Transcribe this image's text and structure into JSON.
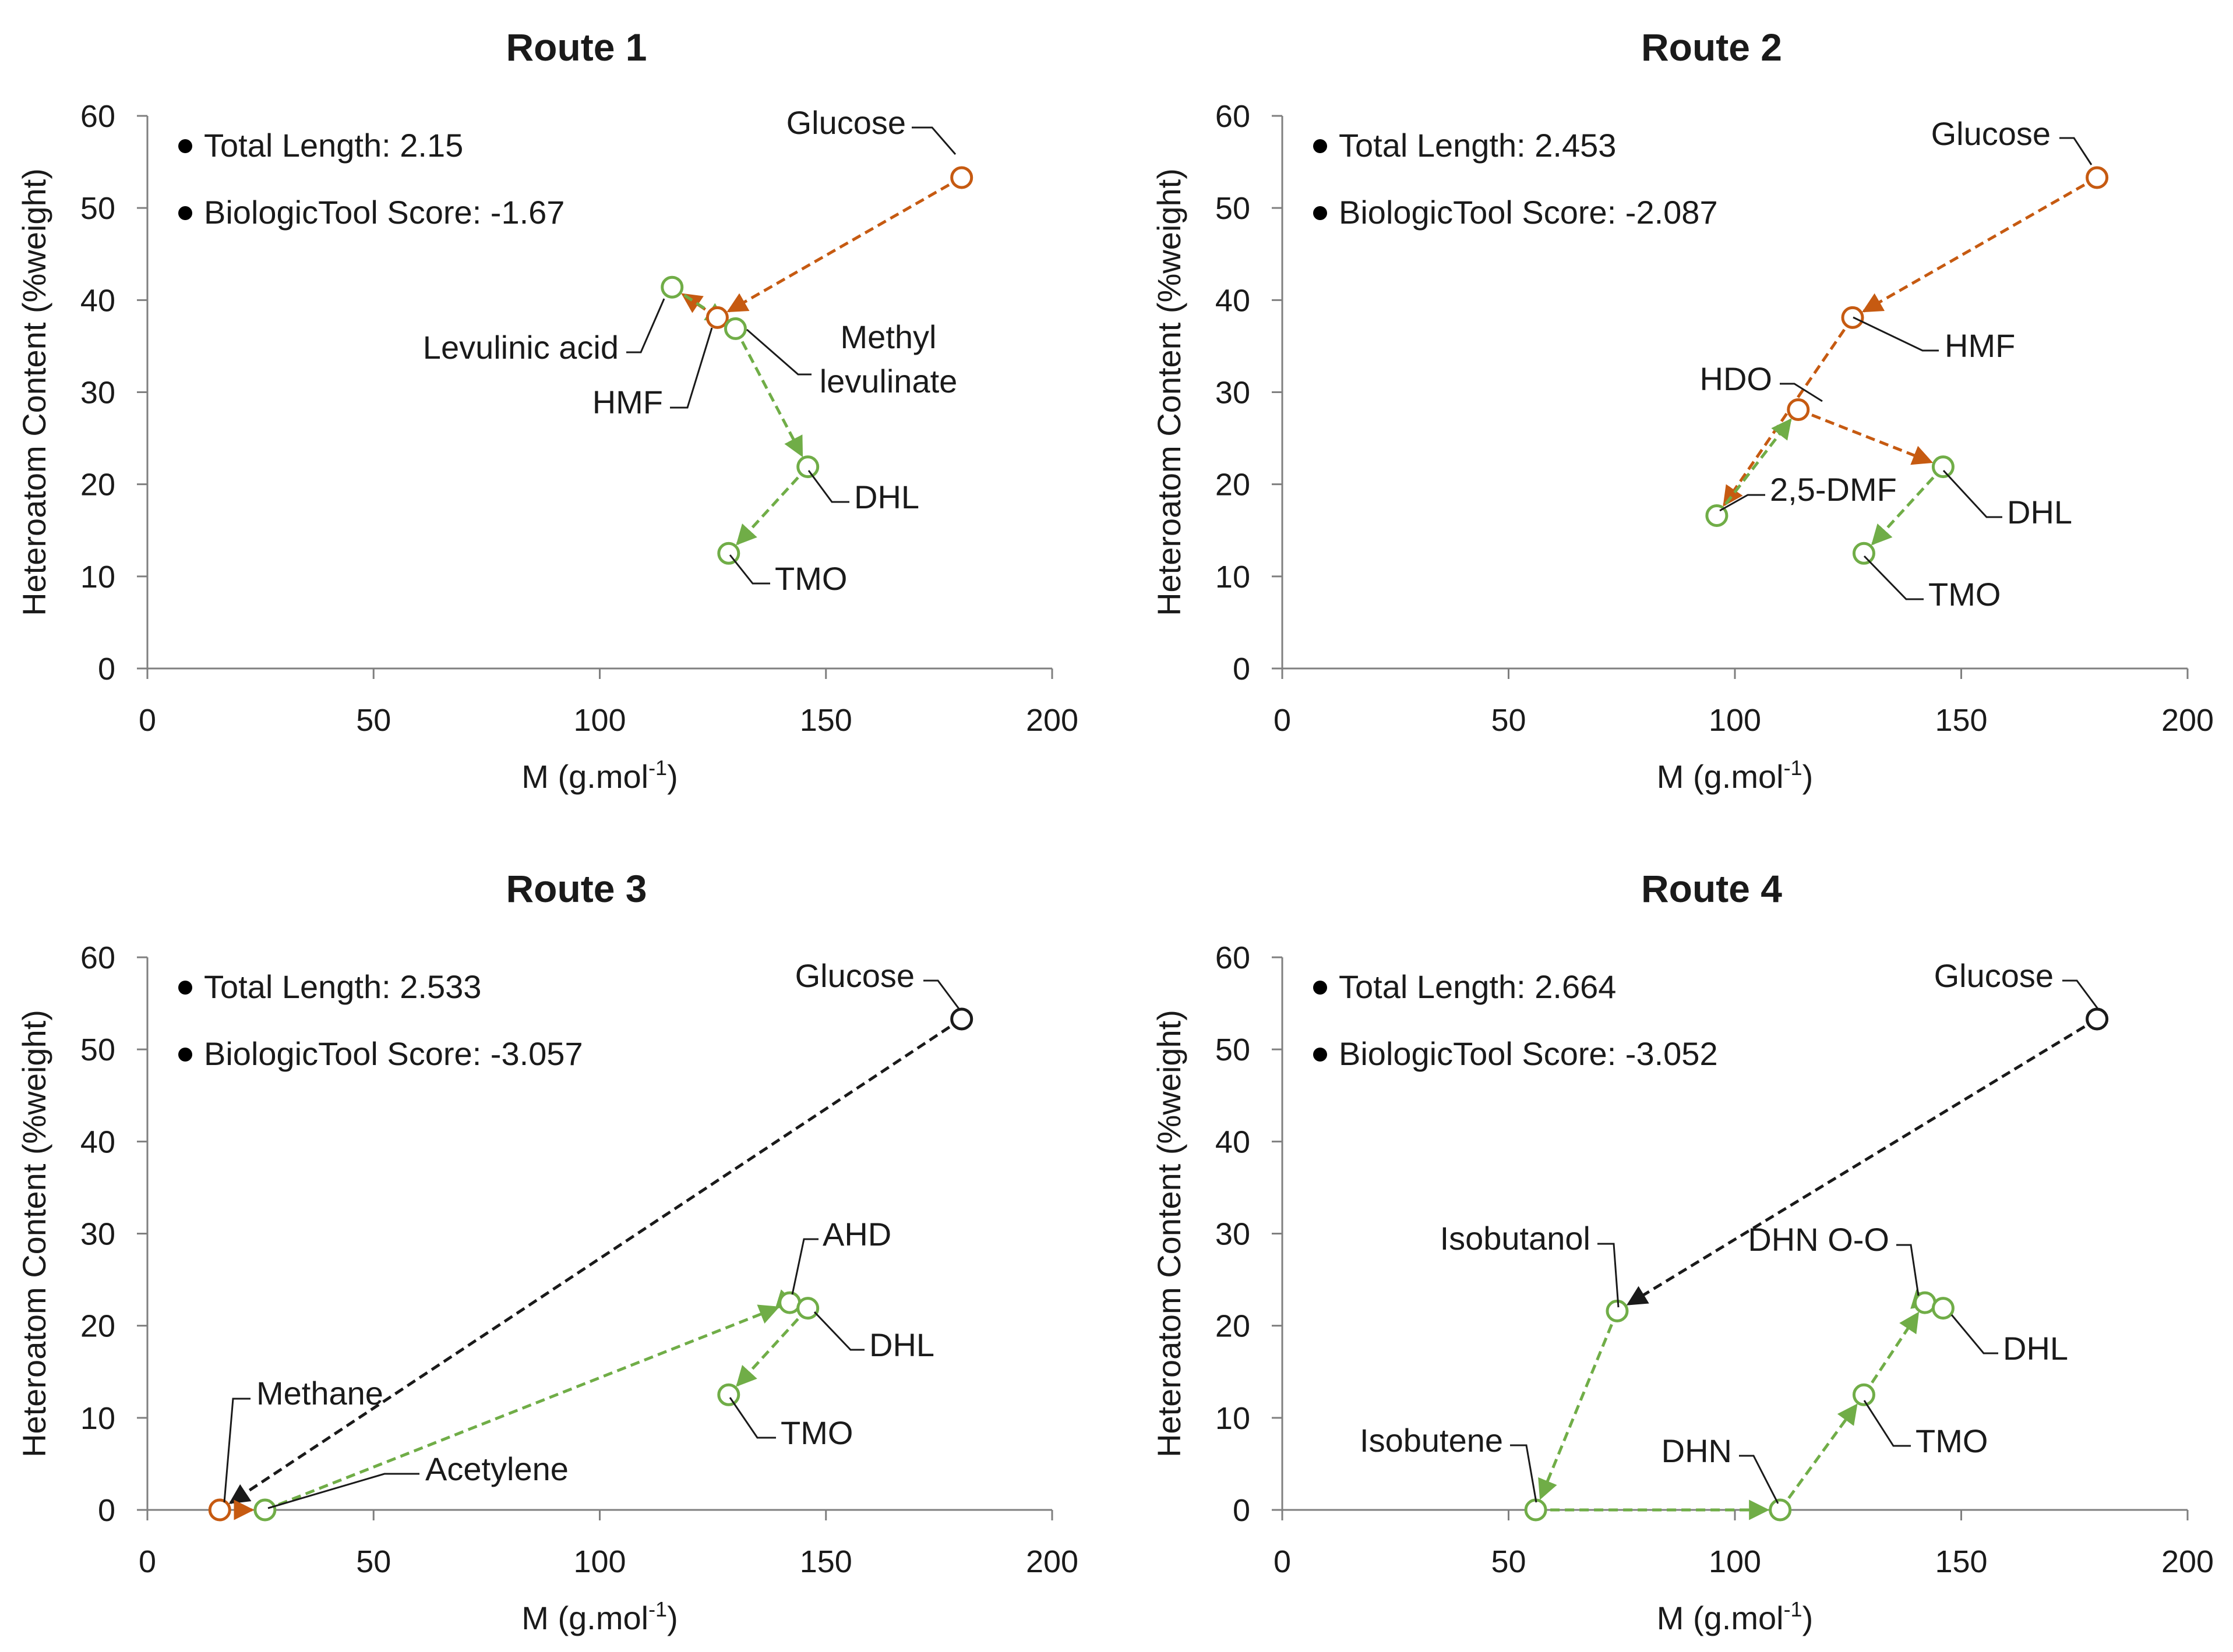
{
  "chart_data": [
    {
      "type": "scatter",
      "title": "Route 1",
      "xlabel": "M (g.mol",
      "xlabel_sup": "-1",
      "xlabel_end": ")",
      "ylabel": "Heteroatom Content (%weight)",
      "xlim": [
        0,
        200
      ],
      "ylim": [
        0,
        60
      ],
      "xticks": [
        0,
        50,
        100,
        150,
        200
      ],
      "yticks": [
        0,
        10,
        20,
        30,
        40,
        50,
        60
      ],
      "notes": [
        "Total Length: 2.15",
        "BiologicTool Score: -1.67"
      ],
      "points": [
        {
          "label": "Glucose",
          "x": 180,
          "y": 53.3,
          "color": "#c65a11"
        },
        {
          "label": "HMF",
          "x": 126,
          "y": 38.1,
          "color": "#c65a11"
        },
        {
          "label": "Levulinic acid",
          "x": 116,
          "y": 41.4,
          "color": "#70ad47"
        },
        {
          "label": "Methyl levulinate",
          "x": 130,
          "y": 36.9,
          "color": "#70ad47"
        },
        {
          "label": "DHL",
          "x": 146,
          "y": 21.9,
          "color": "#70ad47"
        },
        {
          "label": "TMO",
          "x": 128.5,
          "y": 12.5,
          "color": "#70ad47"
        }
      ],
      "series": [
        {
          "name": "chemical",
          "color": "#c65a11",
          "path": [
            "Glucose",
            "HMF",
            "Levulinic acid"
          ]
        },
        {
          "name": "biological",
          "color": "#70ad47",
          "path": [
            "Levulinic acid",
            "Methyl levulinate",
            "DHL",
            "TMO"
          ]
        }
      ]
    },
    {
      "type": "scatter",
      "title": "Route 2",
      "xlabel": "M (g.mol",
      "xlabel_sup": "-1",
      "xlabel_end": ")",
      "ylabel": "Heteroatom Content (%weight)",
      "xlim": [
        0,
        200
      ],
      "ylim": [
        0,
        60
      ],
      "xticks": [
        0,
        50,
        100,
        150,
        200
      ],
      "yticks": [
        0,
        10,
        20,
        30,
        40,
        50,
        60
      ],
      "notes": [
        "Total Length: 2.453",
        "BiologicTool Score: -2.087"
      ],
      "points": [
        {
          "label": "Glucose",
          "x": 180,
          "y": 53.3,
          "color": "#c65a11"
        },
        {
          "label": "HMF",
          "x": 126,
          "y": 38.1,
          "color": "#c65a11"
        },
        {
          "label": "HDO",
          "x": 114,
          "y": 28.1,
          "color": "#c65a11"
        },
        {
          "label": "2,5-DMF",
          "x": 96,
          "y": 16.6,
          "color": "#70ad47"
        },
        {
          "label": "DHL",
          "x": 146,
          "y": 21.9,
          "color": "#70ad47"
        },
        {
          "label": "TMO",
          "x": 128.5,
          "y": 12.5,
          "color": "#70ad47"
        }
      ],
      "series": [
        {
          "name": "chemical",
          "color": "#c65a11",
          "path": [
            "Glucose",
            "HMF",
            "2,5-DMF"
          ]
        },
        {
          "name": "chemical-2",
          "color": "#c65a11",
          "path": [
            "HDO",
            "DHL"
          ]
        },
        {
          "name": "biological",
          "color": "#70ad47",
          "path": [
            "2,5-DMF",
            "HDO"
          ]
        },
        {
          "name": "biological-2",
          "color": "#70ad47",
          "path": [
            "DHL",
            "TMO"
          ]
        }
      ]
    },
    {
      "type": "scatter",
      "title": "Route 3",
      "xlabel": "M (g.mol",
      "xlabel_sup": "-1",
      "xlabel_end": ")",
      "ylabel": "Heteroatom Content (%weight)",
      "xlim": [
        0,
        200
      ],
      "ylim": [
        0,
        60
      ],
      "xticks": [
        0,
        50,
        100,
        150,
        200
      ],
      "yticks": [
        0,
        10,
        20,
        30,
        40,
        50,
        60
      ],
      "notes": [
        "Total Length: 2.533",
        "BiologicTool Score: -3.057"
      ],
      "points": [
        {
          "label": "Glucose",
          "x": 180,
          "y": 53.3,
          "color": "#1a1a1a"
        },
        {
          "label": "Methane",
          "x": 16,
          "y": 0,
          "color": "#c65a11"
        },
        {
          "label": "Acetylene",
          "x": 26,
          "y": 0,
          "color": "#70ad47"
        },
        {
          "label": "AHD",
          "x": 142,
          "y": 22.5,
          "color": "#70ad47"
        },
        {
          "label": "DHL",
          "x": 146,
          "y": 21.9,
          "color": "#70ad47"
        },
        {
          "label": "TMO",
          "x": 128.5,
          "y": 12.5,
          "color": "#70ad47"
        }
      ],
      "series": [
        {
          "name": "other",
          "color": "#1a1a1a",
          "path": [
            "Glucose",
            "Methane"
          ]
        },
        {
          "name": "chemical",
          "color": "#c65a11",
          "path": [
            "Methane",
            "Acetylene"
          ]
        },
        {
          "name": "biological",
          "color": "#70ad47",
          "path": [
            "Acetylene",
            "AHD",
            "DHL",
            "TMO"
          ]
        }
      ]
    },
    {
      "type": "scatter",
      "title": "Route 4",
      "xlabel": "M (g.mol",
      "xlabel_sup": "-1",
      "xlabel_end": ")",
      "ylabel": "Heteroatom Content (%weight)",
      "xlim": [
        0,
        200
      ],
      "ylim": [
        0,
        60
      ],
      "xticks": [
        0,
        50,
        100,
        150,
        200
      ],
      "yticks": [
        0,
        10,
        20,
        30,
        40,
        50,
        60
      ],
      "notes": [
        "Total Length: 2.664",
        "BiologicTool Score: -3.052"
      ],
      "points": [
        {
          "label": "Glucose",
          "x": 180,
          "y": 53.3,
          "color": "#1a1a1a"
        },
        {
          "label": "Isobutanol",
          "x": 74,
          "y": 21.6,
          "color": "#70ad47"
        },
        {
          "label": "Isobutene",
          "x": 56,
          "y": 0,
          "color": "#70ad47"
        },
        {
          "label": "DHN",
          "x": 110,
          "y": 0,
          "color": "#70ad47"
        },
        {
          "label": "TMO",
          "x": 128.5,
          "y": 12.5,
          "color": "#70ad47"
        },
        {
          "label": "DHN O-O",
          "x": 142,
          "y": 22.5,
          "color": "#70ad47"
        },
        {
          "label": "DHL",
          "x": 146,
          "y": 21.9,
          "color": "#70ad47"
        }
      ],
      "series": [
        {
          "name": "other",
          "color": "#1a1a1a",
          "path": [
            "Glucose",
            "Isobutanol"
          ]
        },
        {
          "name": "biological",
          "color": "#70ad47",
          "path": [
            "Isobutanol",
            "Isobutene",
            "DHN",
            "TMO",
            "DHN O-O",
            "DHL"
          ]
        }
      ]
    }
  ]
}
